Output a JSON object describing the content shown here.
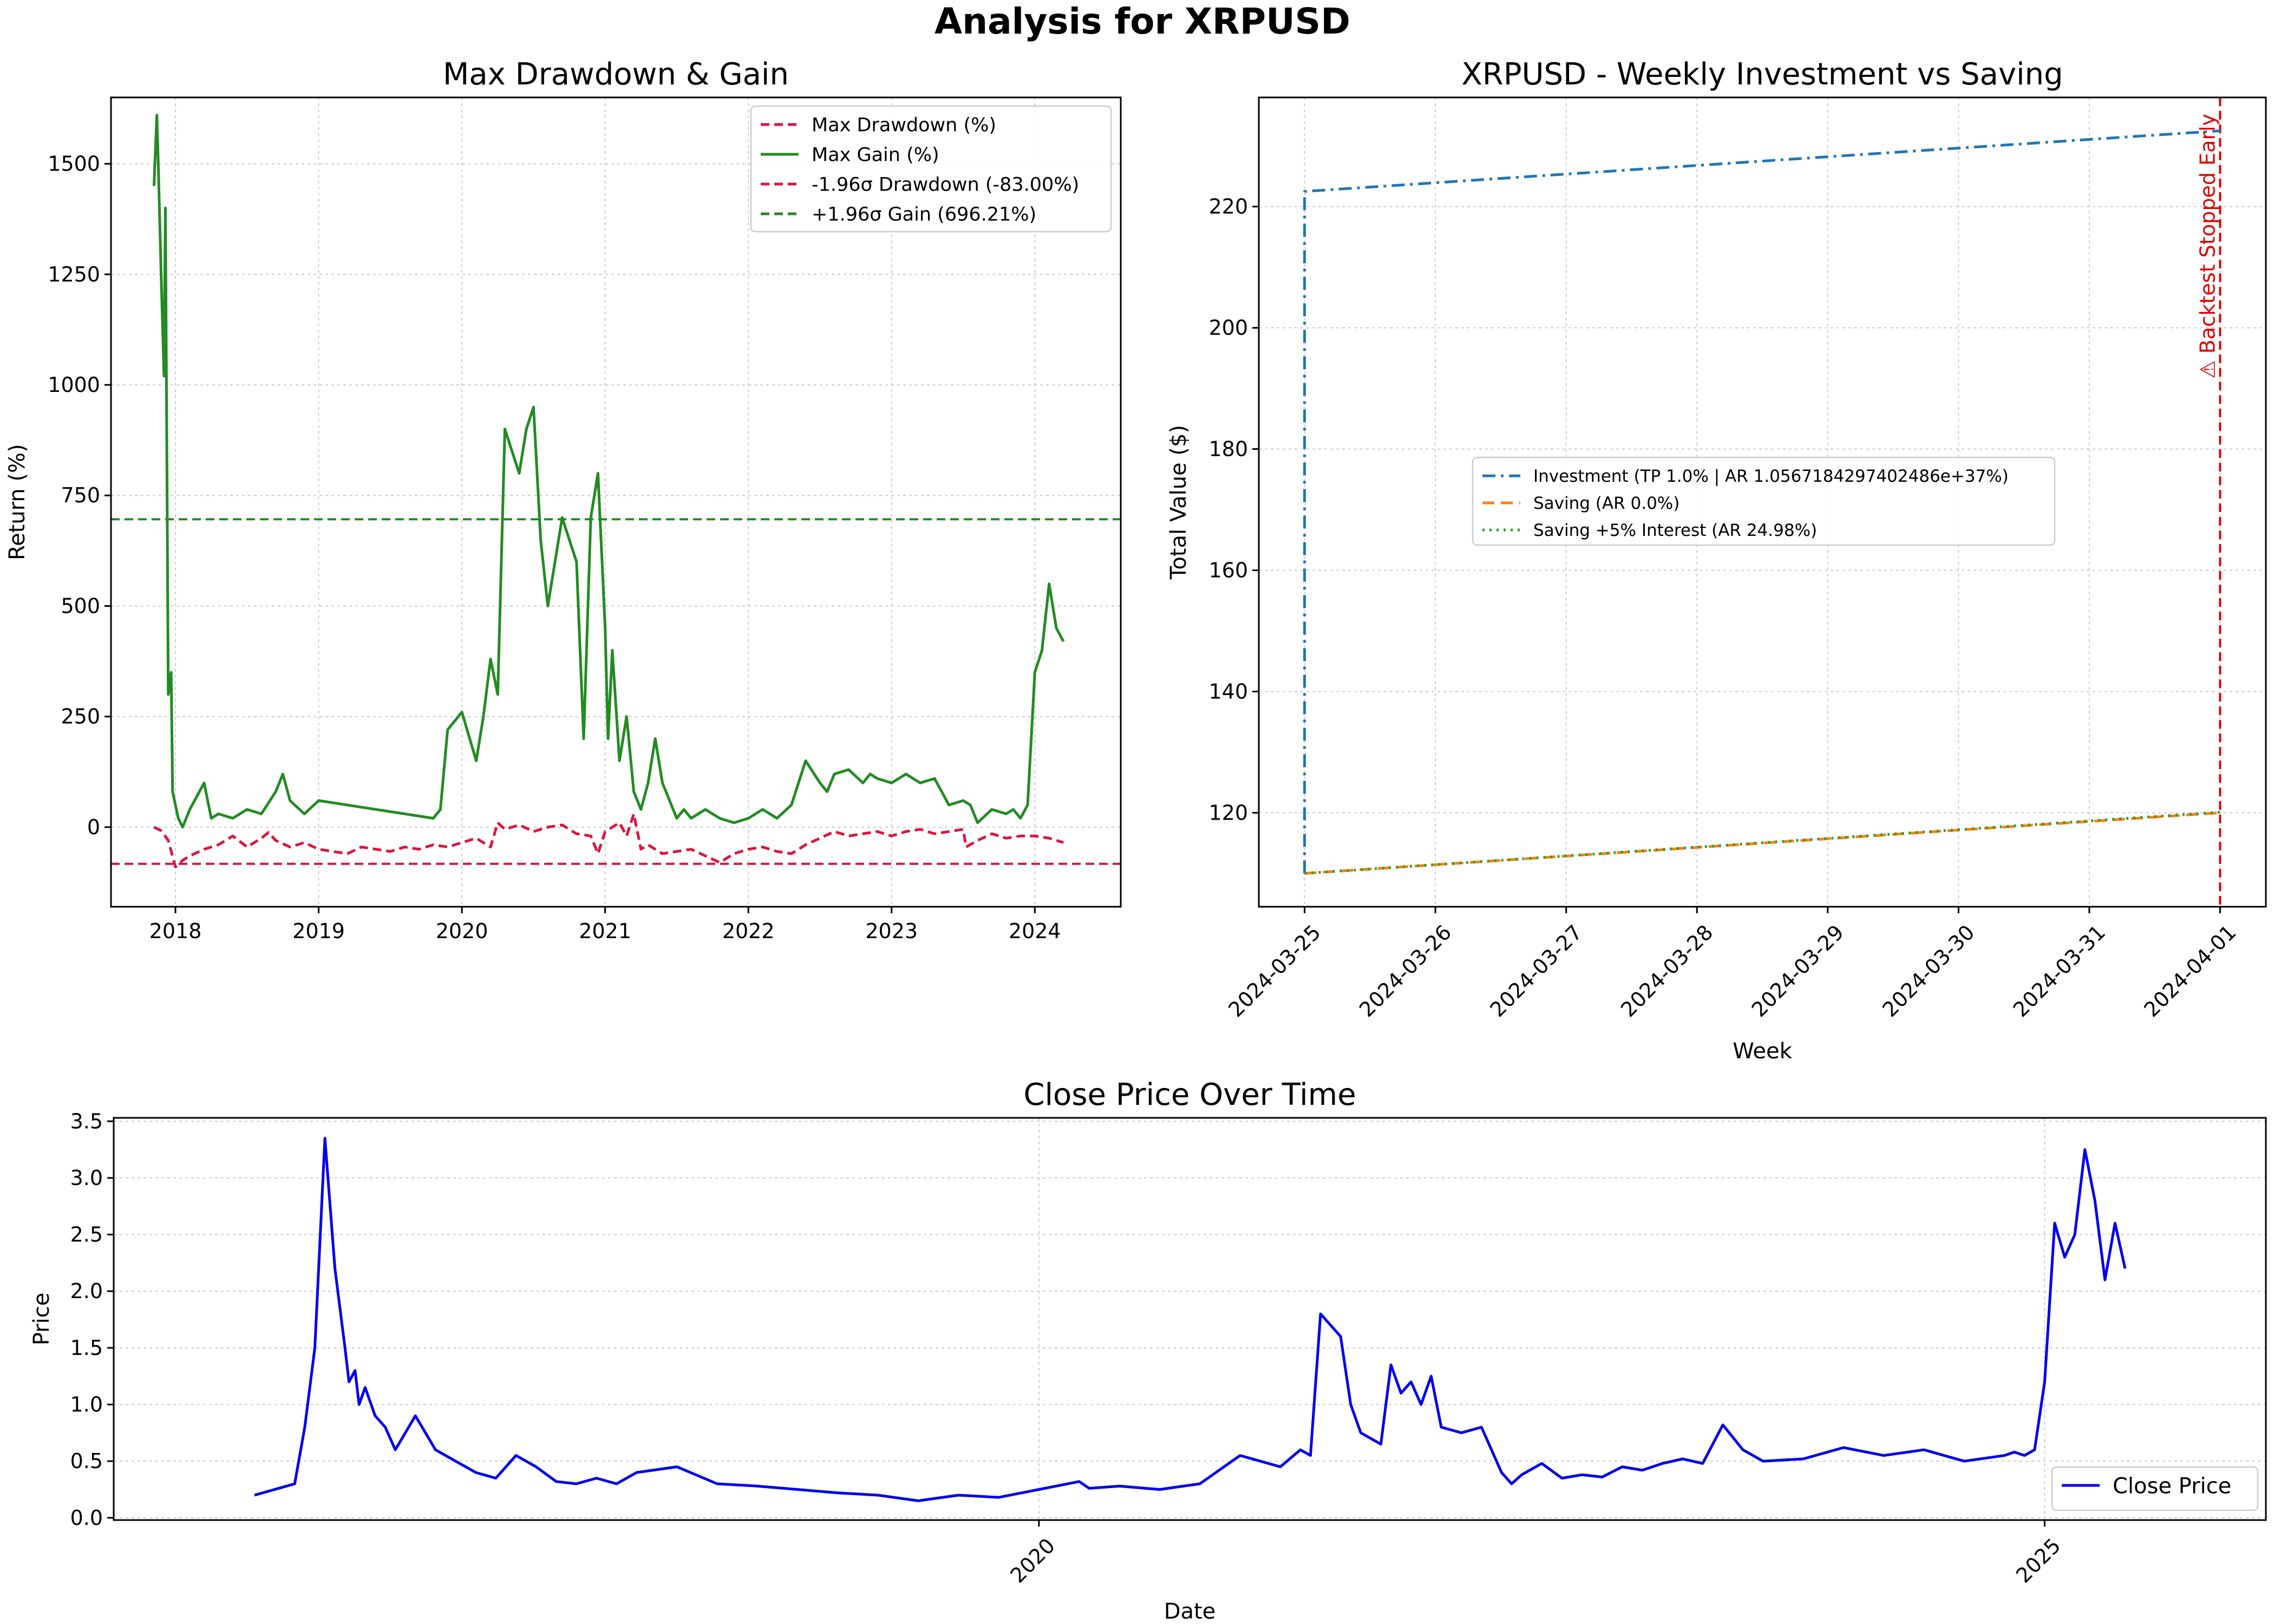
{
  "figure": {
    "suptitle": "Analysis for XRPUSD"
  },
  "chart_data": [
    {
      "id": "drawdown",
      "type": "line",
      "title": "Max Drawdown & Gain",
      "xlabel": "",
      "ylabel": "Return (%)",
      "xlim": [
        2017.55,
        2024.6
      ],
      "ylim": [
        -180,
        1650
      ],
      "x_ticks": [
        {
          "v": 2018,
          "label": "2018"
        },
        {
          "v": 2019,
          "label": "2019"
        },
        {
          "v": 2020,
          "label": "2020"
        },
        {
          "v": 2021,
          "label": "2021"
        },
        {
          "v": 2022,
          "label": "2022"
        },
        {
          "v": 2023,
          "label": "2023"
        },
        {
          "v": 2024,
          "label": "2024"
        }
      ],
      "y_ticks": [
        {
          "v": 0,
          "label": "0"
        },
        {
          "v": 250,
          "label": "250"
        },
        {
          "v": 500,
          "label": "500"
        },
        {
          "v": 750,
          "label": "750"
        },
        {
          "v": 1000,
          "label": "1000"
        },
        {
          "v": 1250,
          "label": "1250"
        },
        {
          "v": 1500,
          "label": "1500"
        }
      ],
      "grid": true,
      "legend_position": "upper right",
      "hlines": [
        {
          "y": -83.0,
          "color": "#dc143c",
          "legend": "-1.96σ Drawdown (-83.00%)"
        },
        {
          "y": 696.21,
          "color": "#228b22",
          "legend": "+1.96σ Gain (696.21%)"
        }
      ],
      "series": [
        {
          "name": "Max Drawdown (%)",
          "color": "#dc143c",
          "dashed": true,
          "x": [
            2017.85,
            2017.9,
            2017.95,
            2018.0,
            2018.05,
            2018.1,
            2018.2,
            2018.3,
            2018.4,
            2018.5,
            2018.6,
            2018.65,
            2018.7,
            2018.8,
            2018.9,
            2019.0,
            2019.1,
            2019.2,
            2019.3,
            2019.4,
            2019.5,
            2019.6,
            2019.7,
            2019.8,
            2019.9,
            2020.0,
            2020.1,
            2020.2,
            2020.25,
            2020.3,
            2020.4,
            2020.5,
            2020.6,
            2020.7,
            2020.8,
            2020.9,
            2020.95,
            2021.0,
            2021.05,
            2021.1,
            2021.15,
            2021.2,
            2021.25,
            2021.3,
            2021.4,
            2021.5,
            2021.6,
            2021.7,
            2021.8,
            2021.9,
            2022.0,
            2022.1,
            2022.2,
            2022.3,
            2022.4,
            2022.5,
            2022.6,
            2022.7,
            2022.8,
            2022.9,
            2023.0,
            2023.1,
            2023.2,
            2023.3,
            2023.4,
            2023.5,
            2023.52,
            2023.6,
            2023.7,
            2023.8,
            2023.9,
            2024.0,
            2024.1,
            2024.2
          ],
          "values": [
            0,
            -8,
            -30,
            -90,
            -75,
            -65,
            -50,
            -40,
            -20,
            -45,
            -25,
            -12,
            -30,
            -45,
            -35,
            -50,
            -55,
            -60,
            -45,
            -50,
            -55,
            -45,
            -50,
            -40,
            -45,
            -35,
            -25,
            -45,
            10,
            -5,
            5,
            -10,
            0,
            5,
            -15,
            -20,
            -60,
            -10,
            0,
            10,
            -20,
            30,
            -50,
            -40,
            -60,
            -55,
            -50,
            -65,
            -80,
            -60,
            -50,
            -45,
            -55,
            -60,
            -40,
            -25,
            -10,
            -20,
            -15,
            -10,
            -20,
            -10,
            -5,
            -15,
            -10,
            -5,
            -45,
            -30,
            -15,
            -25,
            -20,
            -20,
            -25,
            -35
          ]
        },
        {
          "name": "Max Gain (%)",
          "color": "#228b22",
          "dashed": false,
          "x": [
            2017.85,
            2017.87,
            2017.88,
            2017.9,
            2017.92,
            2017.93,
            2017.95,
            2017.97,
            2017.98,
            2018.0,
            2018.02,
            2018.05,
            2018.1,
            2018.2,
            2018.25,
            2018.3,
            2018.4,
            2018.5,
            2018.6,
            2018.7,
            2018.75,
            2018.8,
            2018.9,
            2019.0,
            2019.2,
            2019.4,
            2019.6,
            2019.8,
            2019.85,
            2019.9,
            2020.0,
            2020.1,
            2020.15,
            2020.2,
            2020.25,
            2020.3,
            2020.35,
            2020.4,
            2020.45,
            2020.5,
            2020.55,
            2020.6,
            2020.65,
            2020.7,
            2020.75,
            2020.8,
            2020.85,
            2020.9,
            2020.95,
            2021.0,
            2021.02,
            2021.05,
            2021.1,
            2021.15,
            2021.2,
            2021.25,
            2021.3,
            2021.35,
            2021.4,
            2021.5,
            2021.55,
            2021.6,
            2021.7,
            2021.8,
            2021.9,
            2022.0,
            2022.1,
            2022.2,
            2022.3,
            2022.4,
            2022.5,
            2022.55,
            2022.6,
            2022.7,
            2022.8,
            2022.85,
            2022.9,
            2023.0,
            2023.1,
            2023.2,
            2023.3,
            2023.4,
            2023.5,
            2023.55,
            2023.6,
            2023.7,
            2023.8,
            2023.85,
            2023.9,
            2023.95,
            2024.0,
            2024.05,
            2024.1,
            2024.15,
            2024.2
          ],
          "values": [
            1450,
            1610,
            1500,
            1250,
            1020,
            1400,
            300,
            350,
            80,
            50,
            20,
            0,
            40,
            100,
            20,
            30,
            20,
            40,
            30,
            80,
            120,
            60,
            30,
            60,
            50,
            40,
            30,
            20,
            40,
            220,
            260,
            150,
            250,
            380,
            300,
            900,
            850,
            800,
            900,
            950,
            650,
            500,
            600,
            700,
            650,
            600,
            200,
            700,
            800,
            450,
            200,
            400,
            150,
            250,
            80,
            40,
            100,
            200,
            100,
            20,
            40,
            20,
            40,
            20,
            10,
            20,
            40,
            20,
            50,
            150,
            100,
            80,
            120,
            130,
            100,
            120,
            110,
            100,
            120,
            100,
            110,
            50,
            60,
            50,
            10,
            40,
            30,
            40,
            20,
            50,
            350,
            400,
            550,
            450,
            420
          ]
        }
      ]
    },
    {
      "id": "investment",
      "type": "line",
      "title": "XRPUSD - Weekly Investment vs Saving",
      "xlabel": "Week",
      "ylabel": "Total Value ($)",
      "xlim": [
        -0.35,
        7.35
      ],
      "ylim": [
        104.5,
        238
      ],
      "x_ticks": [
        {
          "v": 0,
          "label": "2024-03-25"
        },
        {
          "v": 1,
          "label": "2024-03-26"
        },
        {
          "v": 2,
          "label": "2024-03-27"
        },
        {
          "v": 3,
          "label": "2024-03-28"
        },
        {
          "v": 4,
          "label": "2024-03-29"
        },
        {
          "v": 5,
          "label": "2024-03-30"
        },
        {
          "v": 6,
          "label": "2024-03-31"
        },
        {
          "v": 7,
          "label": "2024-04-01"
        }
      ],
      "y_ticks": [
        {
          "v": 120,
          "label": "120"
        },
        {
          "v": 140,
          "label": "140"
        },
        {
          "v": 160,
          "label": "160"
        },
        {
          "v": 180,
          "label": "180"
        },
        {
          "v": 200,
          "label": "200"
        },
        {
          "v": 220,
          "label": "220"
        }
      ],
      "grid": true,
      "legend_position": "center",
      "vline": {
        "x": 7,
        "color": "#dd0000",
        "label": "⚠ Backtest Stopped Early"
      },
      "series": [
        {
          "name": "Investment (TP 1.0% | AR 1.0567184297402486e+37%)",
          "color": "#1f77b4",
          "style": "dashdot",
          "x": [
            0,
            0,
            7
          ],
          "values": [
            110,
            222.5,
            232.5
          ]
        },
        {
          "name": "Saving (AR 0.0%)",
          "color": "#ff7f0e",
          "style": "dashed",
          "x": [
            0,
            7
          ],
          "values": [
            110,
            120
          ]
        },
        {
          "name": "Saving +5% Interest (AR 24.98%)",
          "color": "#2ca02c",
          "style": "dotted",
          "x": [
            0,
            7
          ],
          "values": [
            110,
            120.1
          ]
        }
      ]
    },
    {
      "id": "close",
      "type": "line",
      "title": "Close Price Over Time",
      "xlabel": "Date",
      "ylabel": "Price",
      "xlim": [
        2015.4,
        2026.1
      ],
      "ylim": [
        -0.02,
        3.53
      ],
      "x_ticks": [
        {
          "v": 2020,
          "label": "2020"
        },
        {
          "v": 2025,
          "label": "2025"
        }
      ],
      "y_ticks": [
        {
          "v": 0.0,
          "label": "0.0"
        },
        {
          "v": 0.5,
          "label": "0.5"
        },
        {
          "v": 1.0,
          "label": "1.0"
        },
        {
          "v": 1.5,
          "label": "1.5"
        },
        {
          "v": 2.0,
          "label": "2.0"
        },
        {
          "v": 2.5,
          "label": "2.5"
        },
        {
          "v": 3.0,
          "label": "3.0"
        },
        {
          "v": 3.5,
          "label": "3.5"
        }
      ],
      "grid": true,
      "legend_position": "lower right",
      "series": [
        {
          "name": "Close Price",
          "color": "#0000ee",
          "x": [
            2016.1,
            2016.2,
            2016.3,
            2016.35,
            2016.4,
            2016.45,
            2016.5,
            2016.55,
            2016.57,
            2016.6,
            2016.62,
            2016.65,
            2016.7,
            2016.75,
            2016.8,
            2016.9,
            2016.95,
            2017.0,
            2017.1,
            2017.2,
            2017.3,
            2017.4,
            2017.5,
            2017.6,
            2017.7,
            2017.8,
            2017.9,
            2018.0,
            2018.2,
            2018.4,
            2018.6,
            2018.8,
            2019.0,
            2019.2,
            2019.4,
            2019.6,
            2019.8,
            2020.0,
            2020.2,
            2020.25,
            2020.4,
            2020.6,
            2020.8,
            2021.0,
            2021.2,
            2021.3,
            2021.35,
            2021.4,
            2021.5,
            2021.55,
            2021.6,
            2021.7,
            2021.75,
            2021.8,
            2021.85,
            2021.9,
            2021.95,
            2022.0,
            2022.1,
            2022.2,
            2022.3,
            2022.35,
            2022.4,
            2022.5,
            2022.6,
            2022.7,
            2022.8,
            2022.9,
            2023.0,
            2023.1,
            2023.2,
            2023.3,
            2023.4,
            2023.5,
            2023.6,
            2023.8,
            2024.0,
            2024.2,
            2024.4,
            2024.6,
            2024.8,
            2024.85,
            2024.9,
            2024.95,
            2025.0,
            2025.05,
            2025.1,
            2025.15,
            2025.2,
            2025.25,
            2025.3,
            2025.35,
            2025.4
          ],
          "values": [
            0.2,
            0.25,
            0.3,
            0.8,
            1.5,
            3.35,
            2.2,
            1.5,
            1.2,
            1.3,
            1.0,
            1.15,
            0.9,
            0.8,
            0.6,
            0.9,
            0.75,
            0.6,
            0.5,
            0.4,
            0.35,
            0.55,
            0.45,
            0.32,
            0.3,
            0.35,
            0.3,
            0.4,
            0.45,
            0.3,
            0.28,
            0.25,
            0.22,
            0.2,
            0.15,
            0.2,
            0.18,
            0.25,
            0.32,
            0.26,
            0.28,
            0.25,
            0.3,
            0.55,
            0.45,
            0.6,
            0.55,
            1.8,
            1.6,
            1.0,
            0.75,
            0.65,
            1.35,
            1.1,
            1.2,
            1.0,
            1.25,
            0.8,
            0.75,
            0.8,
            0.4,
            0.3,
            0.38,
            0.48,
            0.35,
            0.38,
            0.36,
            0.45,
            0.42,
            0.48,
            0.52,
            0.48,
            0.82,
            0.6,
            0.5,
            0.52,
            0.62,
            0.55,
            0.6,
            0.5,
            0.55,
            0.58,
            0.55,
            0.6,
            1.2,
            2.6,
            2.3,
            2.5,
            3.25,
            2.8,
            2.1,
            2.6,
            2.2
          ]
        }
      ]
    }
  ]
}
